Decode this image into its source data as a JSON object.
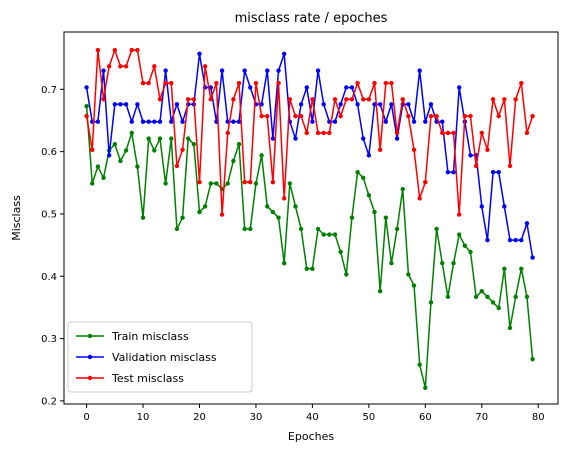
{
  "chart_data": {
    "type": "line",
    "title": "misclass rate / epoches",
    "xlabel": "Epoches",
    "ylabel": "Misclass",
    "xlim": [
      -4,
      83.5
    ],
    "ylim": [
      0.195,
      0.792
    ],
    "xticks": [
      0,
      10,
      20,
      30,
      40,
      50,
      60,
      70,
      80
    ],
    "yticks": [
      0.2,
      0.3,
      0.4,
      0.5,
      0.6,
      0.7
    ],
    "ytick_labels": [
      "0.2",
      "0.3",
      "0.4",
      "0.5",
      "0.6",
      "0.7"
    ],
    "grid": false,
    "legend_position": "lower-left",
    "series": [
      {
        "name": "Train misclass",
        "color": "#008000",
        "values": [
          0.673,
          0.549,
          0.576,
          0.558,
          0.602,
          0.612,
          0.585,
          0.602,
          0.63,
          0.576,
          0.494,
          0.621,
          0.602,
          0.621,
          0.549,
          0.621,
          0.476,
          0.494,
          0.621,
          0.612,
          0.503,
          0.512,
          0.549,
          0.549,
          0.54,
          0.549,
          0.585,
          0.612,
          0.476,
          0.476,
          0.549,
          0.594,
          0.512,
          0.503,
          0.494,
          0.421,
          0.549,
          0.512,
          0.476,
          0.412,
          0.412,
          0.476,
          0.467,
          0.467,
          0.467,
          0.439,
          0.403,
          0.494,
          0.567,
          0.558,
          0.53,
          0.503,
          0.376,
          0.494,
          0.421,
          0.476,
          0.54,
          0.403,
          0.385,
          0.258,
          0.221,
          0.358,
          0.476,
          0.421,
          0.367,
          0.421,
          0.467,
          0.449,
          0.439,
          0.367,
          0.376,
          0.367,
          0.358,
          0.349,
          0.412,
          0.317,
          0.367,
          0.412,
          0.367,
          0.267
        ]
      },
      {
        "name": "Validation misclass",
        "color": "#0000ff",
        "values": [
          0.703,
          0.648,
          0.648,
          0.73,
          0.594,
          0.676,
          0.676,
          0.676,
          0.648,
          0.676,
          0.648,
          0.648,
          0.648,
          0.648,
          0.73,
          0.648,
          0.676,
          0.648,
          0.676,
          0.676,
          0.757,
          0.703,
          0.703,
          0.648,
          0.73,
          0.648,
          0.648,
          0.648,
          0.73,
          0.703,
          0.676,
          0.676,
          0.73,
          0.621,
          0.73,
          0.757,
          0.648,
          0.621,
          0.676,
          0.703,
          0.648,
          0.73,
          0.676,
          0.648,
          0.648,
          0.676,
          0.703,
          0.703,
          0.676,
          0.621,
          0.594,
          0.676,
          0.676,
          0.648,
          0.676,
          0.621,
          0.676,
          0.676,
          0.648,
          0.73,
          0.648,
          0.676,
          0.648,
          0.648,
          0.567,
          0.567,
          0.703,
          0.648,
          0.594,
          0.594,
          0.512,
          0.458,
          0.567,
          0.567,
          0.512,
          0.458,
          0.458,
          0.458,
          0.485,
          0.43
        ]
      },
      {
        "name": "Test misclass",
        "color": "#ff0000",
        "values": [
          0.657,
          0.603,
          0.763,
          0.684,
          0.737,
          0.763,
          0.737,
          0.737,
          0.763,
          0.763,
          0.71,
          0.71,
          0.737,
          0.684,
          0.71,
          0.71,
          0.577,
          0.603,
          0.684,
          0.684,
          0.551,
          0.737,
          0.684,
          0.71,
          0.499,
          0.63,
          0.684,
          0.71,
          0.551,
          0.551,
          0.71,
          0.657,
          0.657,
          0.551,
          0.71,
          0.525,
          0.684,
          0.657,
          0.657,
          0.63,
          0.684,
          0.63,
          0.63,
          0.63,
          0.684,
          0.657,
          0.684,
          0.684,
          0.71,
          0.684,
          0.684,
          0.71,
          0.603,
          0.71,
          0.71,
          0.63,
          0.684,
          0.657,
          0.603,
          0.525,
          0.551,
          0.657,
          0.657,
          0.63,
          0.63,
          0.63,
          0.499,
          0.657,
          0.657,
          0.577,
          0.63,
          0.603,
          0.684,
          0.657,
          0.684,
          0.577,
          0.684,
          0.71,
          0.63,
          0.657
        ]
      }
    ]
  }
}
